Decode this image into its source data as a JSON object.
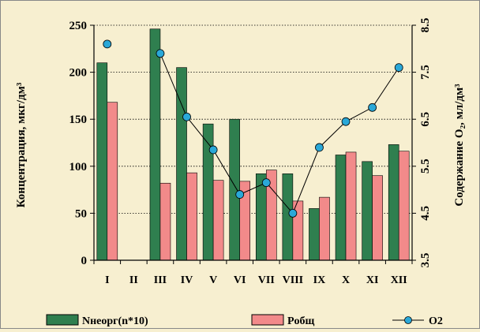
{
  "chart_data": {
    "type": "bar",
    "categories": [
      "I",
      "II",
      "III",
      "IV",
      "V",
      "VI",
      "VII",
      "VIII",
      "IX",
      "X",
      "XI",
      "XII"
    ],
    "category_labels": [
      "I",
      "II",
      "III",
      "IV",
      "V",
      "VI",
      "VII",
      "VIII",
      "IX",
      "X",
      "XI",
      "XII"
    ],
    "ylabel": "Концентрация, мкг/дм³",
    "y2label": "Содержание O₂, мл/дм³",
    "ylim": [
      0,
      250
    ],
    "yticks": [
      0,
      50,
      100,
      150,
      200,
      250
    ],
    "y2lim": [
      3.5,
      8.5
    ],
    "y2ticks": [
      "3.5",
      "4.5",
      "5.5",
      "6.5",
      "7.5",
      "8.5"
    ],
    "grid": "horizontal-dotted",
    "legend_position": "bottom",
    "series": [
      {
        "name": "Nнеорг(n*10)",
        "type": "bar",
        "axis": "left",
        "color": "#2f7f4f",
        "values": [
          210,
          null,
          246,
          205,
          145,
          150,
          92,
          92,
          55,
          112,
          105,
          123
        ]
      },
      {
        "name": "Pобщ",
        "type": "bar",
        "axis": "left",
        "color": "#f28a8a",
        "values": [
          168,
          null,
          82,
          93,
          85,
          84,
          96,
          63,
          67,
          115,
          90,
          116
        ]
      },
      {
        "name": "O2",
        "type": "line",
        "axis": "right",
        "color": "#2aa8d8",
        "values": [
          8.1,
          null,
          7.9,
          6.55,
          5.85,
          4.9,
          5.15,
          4.5,
          5.9,
          6.45,
          6.75,
          7.6
        ]
      }
    ],
    "colors": {
      "background": "#f7efd0",
      "axis": "#000000",
      "line": "#000000"
    }
  }
}
